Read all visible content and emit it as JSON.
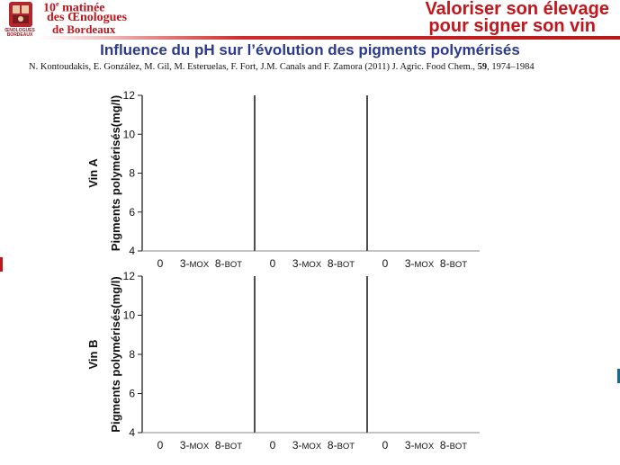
{
  "header": {
    "event_number": "10",
    "event_sup": "e",
    "event_word": "matinée",
    "event_line2": "des Œnologues",
    "event_line3": "de Bordeaux",
    "logo_caption": "ŒNOLOGUES BORDEAUX",
    "slogan_line1": "Valoriser son élevage",
    "slogan_line2": "pour signer son vin",
    "colors": {
      "accent": "#c3151b",
      "title": "#2b3a8f"
    }
  },
  "slide": {
    "title": "Influence du pH sur l’évolution des pigments polymérisés",
    "citation_authors": "N. Kontoudakis, E. González, M. Gil, M. Esteruelas, F. Fort, J.M. Canals and F. Zamora (2011) J. Agric. Food Chem.,",
    "citation_volume": "59",
    "citation_pages": ", 1974–1984"
  },
  "chart_data": {
    "type": "bar",
    "ylabel": "Pigments polymérisés(mg/l)",
    "ylim": [
      4,
      12
    ],
    "yticks": [
      4,
      6,
      8,
      10,
      12
    ],
    "category_labels": [
      {
        "main": "0",
        "sub": ""
      },
      {
        "main": "3-",
        "sub": "MOX"
      },
      {
        "main": "8-",
        "sub": "BOT"
      }
    ],
    "rows": [
      {
        "label": "Vin A",
        "panels": [
          {
            "values": []
          },
          {
            "values": []
          },
          {
            "values": []
          }
        ]
      },
      {
        "label": "Vin B",
        "panels": [
          {
            "values": []
          },
          {
            "values": []
          },
          {
            "values": []
          }
        ]
      }
    ]
  }
}
